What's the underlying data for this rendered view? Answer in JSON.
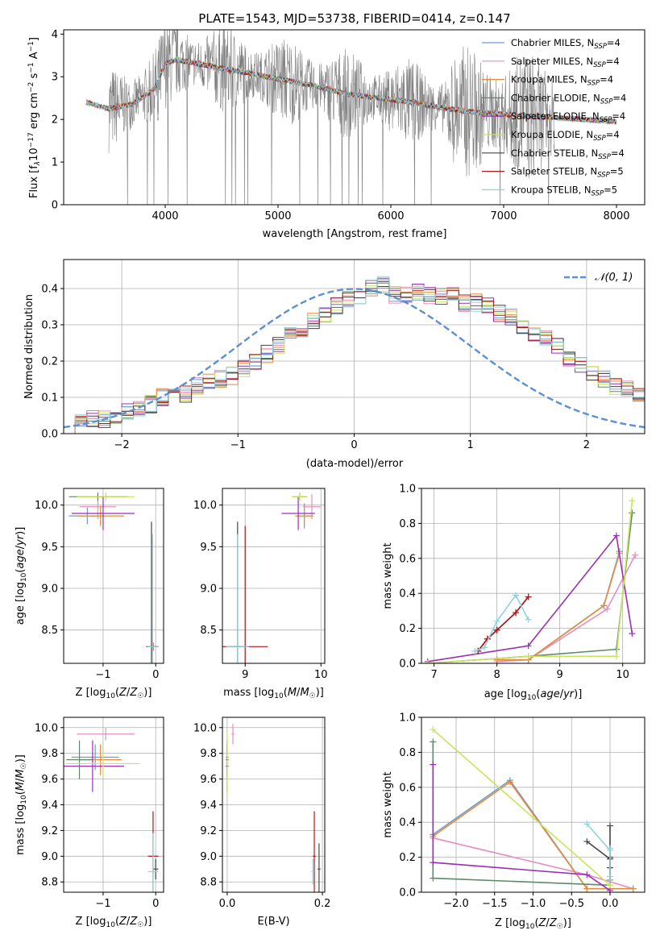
{
  "colors": {
    "chabrier_miles": "#6f9bd1",
    "salpeter_miles": "#e58fc3",
    "kroupa_miles": "#e58b3a",
    "chabrier_elodie": "#5e8a68",
    "salpeter_elodie": "#9b2fb5",
    "kroupa_elodie": "#c9e35a",
    "chabrier_stelib": "#444444",
    "salpeter_stelib": "#b01818",
    "kroupa_stelib": "#8fd3dc",
    "data": "#808080",
    "gaussian": "#5b8fd6",
    "grid": "#b0b0b0"
  },
  "chart_data": [
    {
      "id": "spectrum",
      "type": "line",
      "title": "PLATE=1543, MJD=53738, FIBERID=0414, z=0.147",
      "xlabel": "wavelength [Angstrom, rest frame]",
      "ylabel": "Flux [fλ10⁻¹⁷ erg cm⁻² s⁻¹ A⁻¹]",
      "xlim": [
        3100,
        8250
      ],
      "ylim": [
        0,
        4.1
      ],
      "xticks": [
        4000,
        5000,
        6000,
        7000,
        8000
      ],
      "yticks": [
        0,
        1,
        2,
        3,
        4
      ],
      "grid": false,
      "legend_position": "upper-right",
      "continuum": {
        "x": [
          3300,
          3500,
          3700,
          3900,
          4000,
          4100,
          4300,
          4500,
          4700,
          5000,
          5300,
          5600,
          5900,
          6200,
          6500,
          6800,
          7100,
          7400,
          7700,
          8000
        ],
        "y": [
          2.4,
          2.25,
          2.35,
          2.7,
          3.3,
          3.4,
          3.3,
          3.2,
          3.1,
          2.95,
          2.8,
          2.6,
          2.5,
          2.4,
          2.25,
          2.15,
          2.1,
          2.05,
          2.0,
          1.95
        ]
      },
      "series": [
        {
          "name": "Chabrier MILES, N_SSP=4",
          "key": "chabrier_miles"
        },
        {
          "name": "Salpeter MILES, N_SSP=4",
          "key": "salpeter_miles"
        },
        {
          "name": "Kroupa MILES, N_SSP=4",
          "key": "kroupa_miles"
        },
        {
          "name": "Chabrier ELODIE, N_SSP=4",
          "key": "chabrier_elodie"
        },
        {
          "name": "Salpeter ELODIE, N_SSP=4",
          "key": "salpeter_elodie"
        },
        {
          "name": "Kroupa ELODIE, N_SSP=4",
          "key": "kroupa_elodie"
        },
        {
          "name": "Chabrier STELIB, N_SSP=4",
          "key": "chabrier_stelib"
        },
        {
          "name": "Salpeter STELIB, N_SSP=5",
          "key": "salpeter_stelib"
        },
        {
          "name": "Kroupa STELIB, N_SSP=5",
          "key": "kroupa_stelib"
        }
      ],
      "legend": [
        {
          "pre": "Chabrier MILES, N",
          "sub": "SSP",
          "post": "=4",
          "key": "chabrier_miles"
        },
        {
          "pre": "Salpeter MILES, N",
          "sub": "SSP",
          "post": "=4",
          "key": "salpeter_miles"
        },
        {
          "pre": "Kroupa MILES, N",
          "sub": "SSP",
          "post": "=4",
          "key": "kroupa_miles"
        },
        {
          "pre": "Chabrier ELODIE, N",
          "sub": "SSP",
          "post": "=4",
          "key": "chabrier_elodie"
        },
        {
          "pre": "Salpeter ELODIE, N",
          "sub": "SSP",
          "post": "=4",
          "key": "salpeter_elodie"
        },
        {
          "pre": "Kroupa ELODIE, N",
          "sub": "SSP",
          "post": "=4",
          "key": "kroupa_elodie"
        },
        {
          "pre": "Chabrier STELIB, N",
          "sub": "SSP",
          "post": "=4",
          "key": "chabrier_stelib"
        },
        {
          "pre": "Salpeter STELIB, N",
          "sub": "SSP",
          "post": "=5",
          "key": "salpeter_stelib"
        },
        {
          "pre": "Kroupa STELIB, N",
          "sub": "SSP",
          "post": "=5",
          "key": "kroupa_stelib"
        }
      ]
    },
    {
      "id": "residuals",
      "type": "bar",
      "xlabel": "(data-model)/error",
      "ylabel": "Normed distribution",
      "xlim": [
        -2.5,
        2.5
      ],
      "ylim": [
        0,
        0.48
      ],
      "xticks": [
        -2,
        -1,
        0,
        1,
        2
      ],
      "yticks": [
        0.0,
        0.1,
        0.2,
        0.3,
        0.4
      ],
      "grid": true,
      "legend_position": "upper-right",
      "legend": "𝒩(0, 1)",
      "bin_width": 0.1,
      "bin_start": -2.5,
      "values": [
        0.02,
        0.03,
        0.04,
        0.04,
        0.05,
        0.06,
        0.07,
        0.08,
        0.1,
        0.1,
        0.11,
        0.13,
        0.14,
        0.15,
        0.16,
        0.18,
        0.2,
        0.22,
        0.24,
        0.27,
        0.29,
        0.31,
        0.33,
        0.35,
        0.37,
        0.38,
        0.4,
        0.41,
        0.38,
        0.38,
        0.39,
        0.38,
        0.38,
        0.38,
        0.36,
        0.36,
        0.35,
        0.33,
        0.32,
        0.3,
        0.28,
        0.26,
        0.24,
        0.21,
        0.19,
        0.17,
        0.15,
        0.13,
        0.12,
        0.1,
        0.09,
        0.08,
        0.07,
        0.06,
        0.06,
        0.05,
        0.05,
        0.04,
        0.04,
        0.04,
        0.03,
        0.03,
        0.03,
        0.03,
        0.02,
        0.02,
        0.02,
        0.02,
        0.02,
        0.02
      ]
    },
    {
      "id": "age_vs_z",
      "type": "scatter",
      "xlabel": "Z [log10(Z/Z☉)]",
      "ylabel": "age  [log10(age/yr)]",
      "xlim": [
        -1.75,
        0.15
      ],
      "ylim": [
        8.1,
        10.2
      ],
      "xticks": [
        -1,
        0
      ],
      "yticks": [
        8.5,
        9.0,
        9.5,
        10.0
      ],
      "grid": true,
      "points": [
        {
          "key": "chabrier_miles",
          "x": -1.3,
          "y": 9.87,
          "xerr": 0.35,
          "yerr": 0.1
        },
        {
          "key": "salpeter_miles",
          "x": -1.1,
          "y": 9.98,
          "xerr": 0.35,
          "yerr": 0.15
        },
        {
          "key": "kroupa_miles",
          "x": -1.05,
          "y": 9.87,
          "xerr": 0.45,
          "yerr": 0.12
        },
        {
          "key": "chabrier_elodie",
          "x": -1.1,
          "y": 10.1,
          "xerr": 0.55,
          "yerr": 0.05
        },
        {
          "key": "salpeter_elodie",
          "x": -1.0,
          "y": 9.9,
          "xerr": 0.6,
          "yerr": 0.2
        },
        {
          "key": "kroupa_elodie",
          "x": -0.95,
          "y": 10.1,
          "xerr": 0.55,
          "yerr": 0.05
        },
        {
          "key": "chabrier_stelib",
          "x": -0.08,
          "y": 8.3,
          "xerr": 0.1,
          "yerr": 1.5
        },
        {
          "key": "salpeter_stelib",
          "x": -0.05,
          "y": 8.3,
          "xerr": 0.1,
          "yerr": 0.05
        },
        {
          "key": "kroupa_stelib",
          "x": -0.06,
          "y": 8.3,
          "xerr": 0.1,
          "yerr": 1.35
        }
      ]
    },
    {
      "id": "age_vs_mass",
      "type": "scatter",
      "xlabel": "mass [log10(M/M☉)]",
      "ylabel": "",
      "xlim": [
        8.7,
        10.05
      ],
      "ylim": [
        8.1,
        10.2
      ],
      "xticks": [
        9,
        10
      ],
      "yticks": [
        8.5,
        9.0,
        9.5,
        10.0
      ],
      "grid": true,
      "points": [
        {
          "key": "chabrier_miles",
          "x": 9.78,
          "y": 9.87,
          "xerr": 0.1,
          "yerr": 0.15
        },
        {
          "key": "salpeter_miles",
          "x": 9.88,
          "y": 9.98,
          "xerr": 0.12,
          "yerr": 0.15
        },
        {
          "key": "kroupa_miles",
          "x": 9.78,
          "y": 9.87,
          "xerr": 0.12,
          "yerr": 0.12
        },
        {
          "key": "chabrier_elodie",
          "x": 9.72,
          "y": 10.1,
          "xerr": 0.1,
          "yerr": 0.05
        },
        {
          "key": "salpeter_elodie",
          "x": 9.7,
          "y": 9.9,
          "xerr": 0.22,
          "yerr": 0.2
        },
        {
          "key": "kroupa_elodie",
          "x": 9.72,
          "y": 10.1,
          "xerr": 0.1,
          "yerr": 0.05
        },
        {
          "key": "chabrier_stelib",
          "x": 8.9,
          "y": 8.3,
          "xerr": 0.05,
          "yerr": 1.5
        },
        {
          "key": "salpeter_stelib",
          "x": 9.0,
          "y": 8.3,
          "xerr": 0.3,
          "yerr": 1.45
        },
        {
          "key": "kroupa_stelib",
          "x": 8.9,
          "y": 8.3,
          "xerr": 0.15,
          "yerr": 1.35
        }
      ]
    },
    {
      "id": "mass_weight_vs_age",
      "type": "line",
      "xlabel": "age  [log10(age/yr)]",
      "ylabel": "mass weight",
      "xlim": [
        6.8,
        10.35
      ],
      "ylim": [
        0,
        1.0
      ],
      "xticks": [
        7,
        8,
        9,
        10
      ],
      "yticks": [
        0.0,
        0.2,
        0.4,
        0.6,
        0.8,
        1.0
      ],
      "grid": true,
      "series": [
        {
          "key": "chabrier_miles",
          "x": [
            8.0,
            8.5,
            9.7,
            9.95
          ],
          "y": [
            0.02,
            0.02,
            0.33,
            0.64
          ]
        },
        {
          "key": "salpeter_miles",
          "x": [
            8.0,
            8.5,
            9.75,
            10.2
          ],
          "y": [
            0.01,
            0.02,
            0.31,
            0.62
          ]
        },
        {
          "key": "kroupa_miles",
          "x": [
            8.0,
            8.5,
            9.7,
            9.95
          ],
          "y": [
            0.02,
            0.02,
            0.33,
            0.63
          ]
        },
        {
          "key": "chabrier_elodie",
          "x": [
            6.9,
            8.5,
            9.9,
            10.15
          ],
          "y": [
            0.0,
            0.04,
            0.08,
            0.86
          ]
        },
        {
          "key": "salpeter_elodie",
          "x": [
            6.9,
            8.5,
            9.9,
            10.15
          ],
          "y": [
            0.01,
            0.1,
            0.73,
            0.17
          ]
        },
        {
          "key": "kroupa_elodie",
          "x": [
            6.9,
            8.5,
            9.9,
            10.15
          ],
          "y": [
            0.0,
            0.04,
            0.04,
            0.93
          ]
        },
        {
          "key": "chabrier_stelib",
          "x": [
            7.7,
            7.85,
            8.0,
            8.3,
            8.5
          ],
          "y": [
            0.07,
            0.14,
            0.19,
            0.29,
            0.38
          ]
        },
        {
          "key": "salpeter_stelib",
          "x": [
            7.7,
            7.85,
            8.0,
            8.3,
            8.5
          ],
          "y": [
            0.07,
            0.14,
            0.19,
            0.29,
            0.38
          ]
        },
        {
          "key": "kroupa_stelib",
          "x": [
            7.65,
            7.8,
            8.0,
            8.3,
            8.5
          ],
          "y": [
            0.07,
            0.09,
            0.24,
            0.39,
            0.25
          ]
        }
      ]
    },
    {
      "id": "mass_vs_z",
      "type": "scatter",
      "xlabel": "Z [log10(Z/Z☉)]",
      "ylabel": "mass [log10(M/M☉)]",
      "xlim": [
        -1.75,
        0.15
      ],
      "ylim": [
        8.72,
        10.08
      ],
      "xticks": [
        -1,
        0
      ],
      "yticks": [
        8.8,
        9.0,
        9.2,
        9.4,
        9.6,
        9.8,
        10.0
      ],
      "grid": true,
      "points": [
        {
          "key": "chabrier_miles",
          "x": -1.15,
          "y": 9.77,
          "xerr": 0.45,
          "yerr": 0.1
        },
        {
          "key": "salpeter_miles",
          "x": -0.95,
          "y": 9.95,
          "xerr": 0.55,
          "yerr": 0.05
        },
        {
          "key": "kroupa_miles",
          "x": -1.05,
          "y": 9.75,
          "xerr": 0.4,
          "yerr": 0.12
        },
        {
          "key": "chabrier_elodie",
          "x": -1.45,
          "y": 9.75,
          "xerr": 0.25,
          "yerr": 0.15
        },
        {
          "key": "salpeter_elodie",
          "x": -1.2,
          "y": 9.7,
          "xerr": 0.6,
          "yerr": 0.2
        },
        {
          "key": "kroupa_elodie",
          "x": -1.0,
          "y": 9.72,
          "xerr": 0.7,
          "yerr": 0.1
        },
        {
          "key": "chabrier_stelib",
          "x": 0.0,
          "y": 8.9,
          "xerr": 0.05,
          "yerr": 0.08
        },
        {
          "key": "salpeter_stelib",
          "x": -0.05,
          "y": 9.0,
          "xerr": 0.1,
          "yerr": 0.35
        },
        {
          "key": "kroupa_stelib",
          "x": -0.05,
          "y": 8.88,
          "xerr": 0.1,
          "yerr": 0.3
        }
      ]
    },
    {
      "id": "mass_vs_ebv",
      "type": "scatter",
      "xlabel": "E(B-V)",
      "ylabel": "",
      "xlim": [
        -0.01,
        0.205
      ],
      "ylim": [
        8.72,
        10.08
      ],
      "xticks": [
        0.0,
        0.2
      ],
      "yticks": [
        8.8,
        9.0,
        9.2,
        9.4,
        9.6,
        9.8,
        10.0
      ],
      "grid": true,
      "points": [
        {
          "key": "chabrier_miles",
          "x": 0.0,
          "y": 9.77,
          "xerr": 0.003,
          "yerr": 0.1
        },
        {
          "key": "salpeter_miles",
          "x": 0.012,
          "y": 9.95,
          "xerr": 0.003,
          "yerr": 0.08
        },
        {
          "key": "kroupa_miles",
          "x": 0.0,
          "y": 9.75,
          "xerr": 0.003,
          "yerr": 0.1
        },
        {
          "key": "chabrier_elodie",
          "x": 0.0,
          "y": 9.75,
          "xerr": 0.003,
          "yerr": 0.15
        },
        {
          "key": "salpeter_elodie",
          "x": 0.0,
          "y": 9.7,
          "xerr": 0.003,
          "yerr": 0.2
        },
        {
          "key": "kroupa_elodie",
          "x": 0.0,
          "y": 9.72,
          "xerr": 0.003,
          "yerr": 0.25
        },
        {
          "key": "chabrier_stelib",
          "x": 0.193,
          "y": 8.9,
          "xerr": 0.003,
          "yerr": 0.2
        },
        {
          "key": "salpeter_stelib",
          "x": 0.183,
          "y": 9.0,
          "xerr": 0.003,
          "yerr": 0.35
        },
        {
          "key": "kroupa_stelib",
          "x": 0.18,
          "y": 8.88,
          "xerr": 0.003,
          "yerr": 0.1
        }
      ]
    },
    {
      "id": "mass_weight_vs_z",
      "type": "line",
      "xlabel": "Z [log10(Z/Z☉)]",
      "ylabel": "mass weight",
      "xlim": [
        -2.45,
        0.45
      ],
      "ylim": [
        0,
        1.0
      ],
      "xticks": [
        -2.0,
        -1.5,
        -1.0,
        -0.5,
        0.0
      ],
      "yticks": [
        0.0,
        0.2,
        0.4,
        0.6,
        0.8,
        1.0
      ],
      "grid": true,
      "series": [
        {
          "key": "chabrier_miles",
          "x": [
            -2.3,
            -1.3,
            -0.3,
            0.3
          ],
          "y": [
            0.33,
            0.64,
            0.02,
            0.02
          ]
        },
        {
          "key": "salpeter_miles",
          "x": [
            -2.3,
            -0.3,
            0.3
          ],
          "y": [
            0.31,
            0.1,
            0.02
          ]
        },
        {
          "key": "kroupa_miles",
          "x": [
            -2.3,
            -1.3,
            -0.3,
            0.3
          ],
          "y": [
            0.32,
            0.63,
            0.02,
            0.02
          ]
        },
        {
          "key": "chabrier_elodie",
          "x": [
            -2.3,
            -2.3,
            0.0
          ],
          "y": [
            0.86,
            0.08,
            0.04
          ]
        },
        {
          "key": "salpeter_elodie",
          "x": [
            -2.3,
            -2.3,
            -0.3,
            0.0
          ],
          "y": [
            0.73,
            0.17,
            0.1,
            0.01
          ]
        },
        {
          "key": "kroupa_elodie",
          "x": [
            -2.3,
            0.0
          ],
          "y": [
            0.93,
            0.04
          ]
        },
        {
          "key": "chabrier_stelib",
          "x": [
            -0.3,
            0.0,
            0.0,
            0.0,
            0.0
          ],
          "y": [
            0.29,
            0.19,
            0.07,
            0.14,
            0.38
          ]
        },
        {
          "key": "salpeter_stelib",
          "x": [
            0.0,
            0.0
          ],
          "y": [
            0.07,
            0.2
          ]
        },
        {
          "key": "kroupa_stelib",
          "x": [
            -0.3,
            0.0,
            0.0,
            0.0,
            0.0
          ],
          "y": [
            0.39,
            0.24,
            0.07,
            0.09,
            0.25
          ]
        }
      ]
    }
  ]
}
